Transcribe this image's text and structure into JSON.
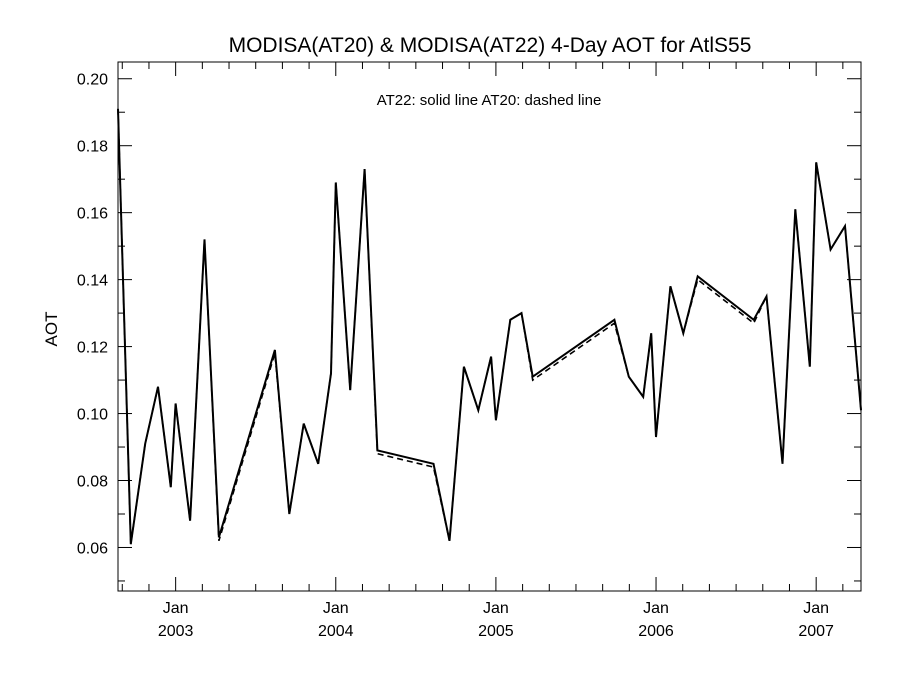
{
  "chart_data": {
    "type": "line",
    "title": "MODISA(AT20) & MODISA(AT22) 4-Day AOT for AtlS55",
    "annotation": "AT22: solid line   AT20: dashed line",
    "xlabel": "",
    "ylabel": "AOT",
    "xlim": [
      2002.64,
      2007.28
    ],
    "ylim": [
      0.047,
      0.205
    ],
    "y_ticks": [
      0.06,
      0.08,
      0.1,
      0.12,
      0.14,
      0.16,
      0.18,
      0.2
    ],
    "y_tick_labels": [
      "0.06",
      "0.08",
      "0.10",
      "0.12",
      "0.14",
      "0.16",
      "0.18",
      "0.20"
    ],
    "x_ticks": [
      {
        "x": 2003.0,
        "month": "Jan",
        "year": "2003"
      },
      {
        "x": 2004.0,
        "month": "Jan",
        "year": "2004"
      },
      {
        "x": 2005.0,
        "month": "Jan",
        "year": "2005"
      },
      {
        "x": 2006.0,
        "month": "Jan",
        "year": "2006"
      },
      {
        "x": 2007.0,
        "month": "Jan",
        "year": "2007"
      }
    ],
    "grid": false,
    "series": [
      {
        "name": "AT22",
        "style": "solid",
        "x": [
          2002.64,
          2002.72,
          2002.81,
          2002.89,
          2002.97,
          2003.0,
          2003.09,
          2003.18,
          2003.27,
          2003.62,
          2003.71,
          2003.8,
          2003.89,
          2003.97,
          2004.0,
          2004.09,
          2004.18,
          2004.26,
          2004.61,
          2004.71,
          2004.8,
          2004.89,
          2004.97,
          2005.0,
          2005.09,
          2005.16,
          2005.23,
          2005.74,
          2005.83,
          2005.92,
          2005.97,
          2006.0,
          2006.09,
          2006.17,
          2006.26,
          2006.61,
          2006.69,
          2006.79,
          2006.87,
          2006.96,
          2007.0,
          2007.09,
          2007.18,
          2007.28
        ],
        "y": [
          0.191,
          0.061,
          0.091,
          0.108,
          0.078,
          0.103,
          0.068,
          0.152,
          0.063,
          0.119,
          0.07,
          0.097,
          0.085,
          0.112,
          0.169,
          0.107,
          0.173,
          0.089,
          0.085,
          0.062,
          0.114,
          0.101,
          0.117,
          0.098,
          0.128,
          0.13,
          0.111,
          0.128,
          0.111,
          0.105,
          0.124,
          0.093,
          0.138,
          0.124,
          0.141,
          0.128,
          0.135,
          0.085,
          0.161,
          0.114,
          0.175,
          0.149,
          0.156,
          0.101
        ]
      },
      {
        "name": "AT20",
        "style": "dashed",
        "x": [
          2002.64,
          2002.72,
          2002.81,
          2002.89,
          2002.97,
          2003.0,
          2003.09,
          2003.18,
          2003.27,
          2003.62,
          2003.71,
          2003.8,
          2003.89,
          2003.97,
          2004.0,
          2004.09,
          2004.18,
          2004.26,
          2004.61,
          2004.71,
          2004.8,
          2004.89,
          2004.97,
          2005.0,
          2005.09,
          2005.16,
          2005.23,
          2005.74,
          2005.83,
          2005.92,
          2005.97,
          2006.0,
          2006.09,
          2006.17,
          2006.26,
          2006.61,
          2006.69,
          2006.79,
          2006.87,
          2006.96,
          2007.0,
          2007.09,
          2007.18,
          2007.28
        ],
        "y": [
          0.191,
          0.061,
          0.091,
          0.108,
          0.078,
          0.103,
          0.068,
          0.152,
          0.062,
          0.118,
          0.07,
          0.097,
          0.085,
          0.112,
          0.169,
          0.107,
          0.173,
          0.088,
          0.084,
          0.062,
          0.114,
          0.101,
          0.117,
          0.098,
          0.128,
          0.13,
          0.11,
          0.127,
          0.111,
          0.105,
          0.124,
          0.093,
          0.138,
          0.124,
          0.14,
          0.127,
          0.135,
          0.085,
          0.161,
          0.114,
          0.175,
          0.149,
          0.156,
          0.101
        ]
      }
    ]
  }
}
